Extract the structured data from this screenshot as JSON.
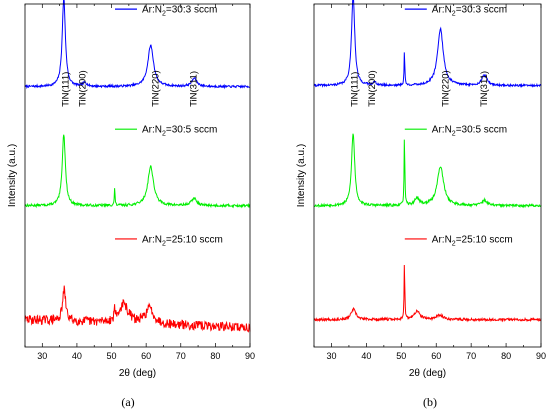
{
  "chart_data": [
    {
      "type": "line",
      "caption": "(a)",
      "xlabel": "2θ (deg)",
      "ylabel": "Intensity (a.u.)",
      "xlim": [
        25,
        90
      ],
      "xticks": [
        30,
        40,
        50,
        60,
        70,
        80,
        90
      ],
      "grid": false,
      "peak_labels": [
        {
          "text": "TiN(111)",
          "x": 37.5
        },
        {
          "text": "TiN(200)",
          "x": 42.5
        },
        {
          "text": "TiN(220)",
          "x": 63.5
        },
        {
          "text": "TiN(311)",
          "x": 74.5
        }
      ],
      "series": [
        {
          "name": "Ar:N",
          "sub": "2",
          "suffix": "=30:3 sccm",
          "color": "#0000ff",
          "baseline": 0.13,
          "peaks": [
            [
              36.2,
              0.86,
              0.55
            ],
            [
              42.3,
              0.04,
              0.6
            ],
            [
              61.3,
              0.4,
              1.0
            ],
            [
              73.9,
              0.08,
              0.9
            ]
          ],
          "noise": 0.01,
          "slope": 0.0,
          "seed": 7
        },
        {
          "name": "Ar:N",
          "sub": "2",
          "suffix": "=30:5 sccm",
          "color": "#00ee00",
          "baseline": 0.14,
          "peaks": [
            [
              36.2,
              0.7,
              0.55
            ],
            [
              50.9,
              0.17,
              0.12
            ],
            [
              61.3,
              0.38,
              1.0
            ],
            [
              73.8,
              0.07,
              0.9
            ]
          ],
          "noise": 0.012,
          "slope": 0.0,
          "seed": 13
        },
        {
          "name": "Ar:N",
          "sub": "2",
          "suffix": "=25:10 sccm",
          "color": "#ff0000",
          "baseline": 0.1,
          "peaks": [
            [
              36.3,
              0.3,
              0.55
            ],
            [
              50.9,
              0.15,
              0.12
            ],
            [
              53.5,
              0.18,
              1.6
            ],
            [
              61.0,
              0.15,
              1.4
            ]
          ],
          "noise": 0.045,
          "slope": -0.0012,
          "seed": 29
        }
      ]
    },
    {
      "type": "line",
      "caption": "(b)",
      "xlabel": "2θ (deg)",
      "ylabel": "Intensity (a.u.)",
      "xlim": [
        25,
        90
      ],
      "xticks": [
        30,
        40,
        50,
        60,
        70,
        80,
        90
      ],
      "grid": false,
      "peak_labels": [
        {
          "text": "TiN(111)",
          "x": 37.5
        },
        {
          "text": "TiN(200)",
          "x": 42.5
        },
        {
          "text": "TiN(220)",
          "x": 63.5
        },
        {
          "text": "TiN(311)",
          "x": 74.5
        }
      ],
      "series": [
        {
          "name": "Ar:N",
          "sub": "2",
          "suffix": "=30:3 sccm",
          "color": "#0000ff",
          "baseline": 0.14,
          "peaks": [
            [
              36.2,
              0.88,
              0.55
            ],
            [
              42.3,
              0.03,
              0.6
            ],
            [
              50.9,
              0.33,
              0.12
            ],
            [
              61.2,
              0.55,
              1.0
            ],
            [
              73.8,
              0.1,
              0.9
            ]
          ],
          "noise": 0.01,
          "slope": 0.0,
          "seed": 41
        },
        {
          "name": "Ar:N",
          "sub": "2",
          "suffix": "=30:5 sccm",
          "color": "#00ee00",
          "baseline": 0.14,
          "peaks": [
            [
              36.2,
              0.7,
              0.55
            ],
            [
              50.9,
              0.68,
              0.12
            ],
            [
              54.5,
              0.07,
              0.8
            ],
            [
              61.2,
              0.38,
              1.1
            ],
            [
              73.8,
              0.05,
              0.9
            ]
          ],
          "noise": 0.012,
          "slope": 0.0,
          "seed": 53
        },
        {
          "name": "Ar:N",
          "sub": "2",
          "suffix": "=25:10 sccm",
          "color": "#ff0000",
          "baseline": 0.1,
          "peaks": [
            [
              36.3,
              0.1,
              0.8
            ],
            [
              50.9,
              0.55,
              0.12
            ],
            [
              54.5,
              0.08,
              1.0
            ],
            [
              61.0,
              0.04,
              1.2
            ]
          ],
          "noise": 0.012,
          "slope": 0.0,
          "seed": 67
        }
      ]
    }
  ]
}
